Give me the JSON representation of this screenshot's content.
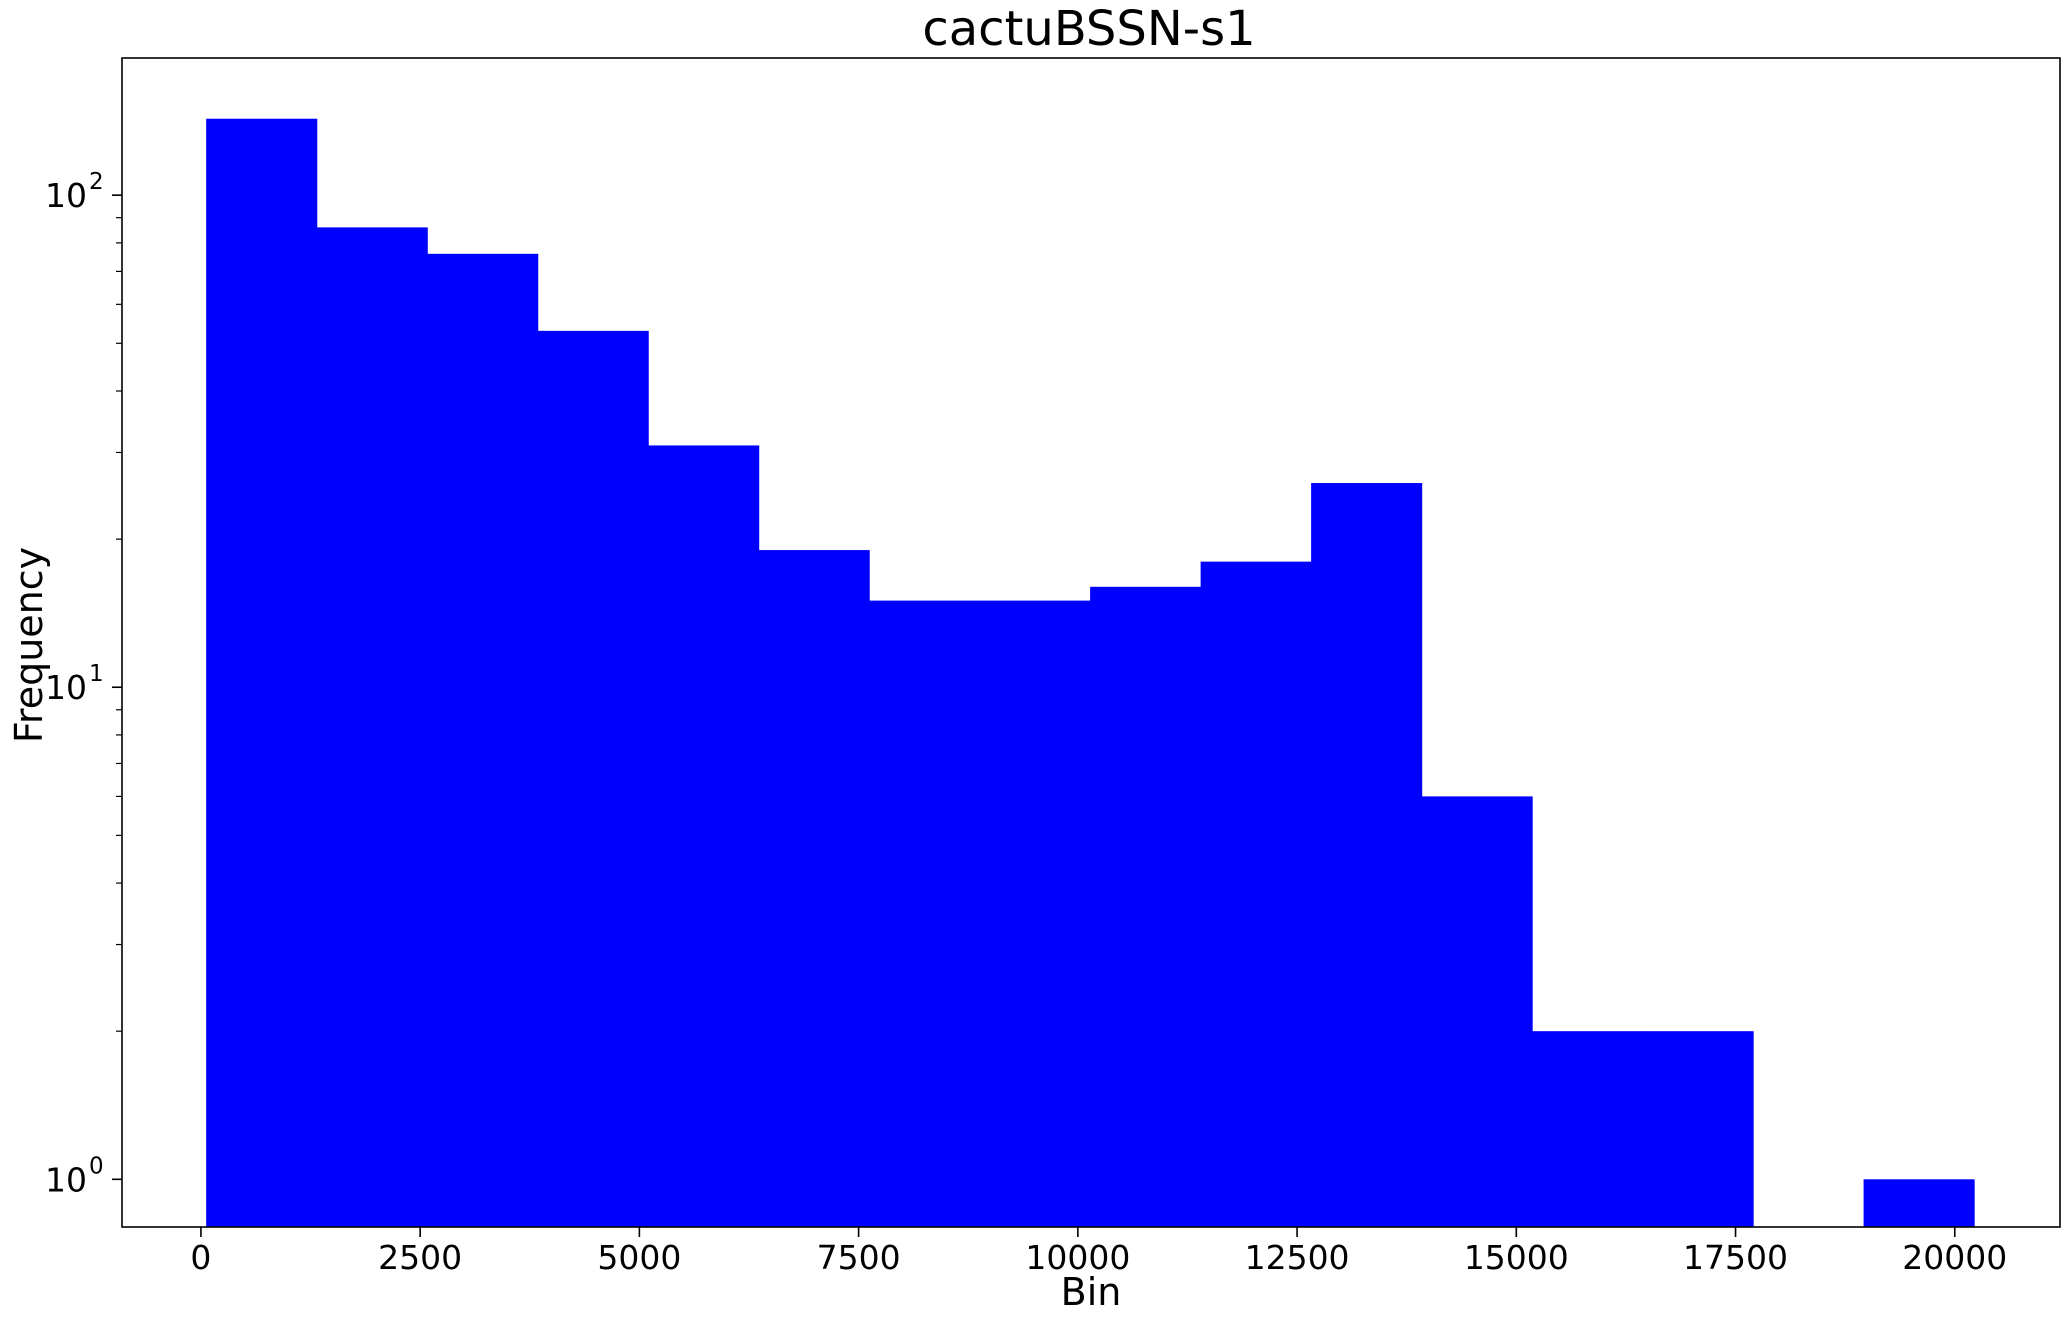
{
  "chart_data": {
    "type": "bar",
    "title": "cactuBSSN-s1",
    "xlabel": "Bin",
    "ylabel": "Frequency",
    "y_scale": "log",
    "ylim": [
      0.8,
      190
    ],
    "xlim": [
      -900,
      21200
    ],
    "bar_color": "#0000ff",
    "grid": false,
    "legend": "none",
    "bins": [
      {
        "x0": 60,
        "x1": 1320,
        "value": 143
      },
      {
        "x0": 1320,
        "x1": 2580,
        "value": 86
      },
      {
        "x0": 2580,
        "x1": 3840,
        "value": 76
      },
      {
        "x0": 3840,
        "x1": 5100,
        "value": 53
      },
      {
        "x0": 5100,
        "x1": 6360,
        "value": 31
      },
      {
        "x0": 6360,
        "x1": 7620,
        "value": 19
      },
      {
        "x0": 7620,
        "x1": 8880,
        "value": 15
      },
      {
        "x0": 8880,
        "x1": 10140,
        "value": 15
      },
      {
        "x0": 10140,
        "x1": 11400,
        "value": 16
      },
      {
        "x0": 11400,
        "x1": 12660,
        "value": 18
      },
      {
        "x0": 12660,
        "x1": 13920,
        "value": 26
      },
      {
        "x0": 13920,
        "x1": 15180,
        "value": 6
      },
      {
        "x0": 15180,
        "x1": 16440,
        "value": 2
      },
      {
        "x0": 16440,
        "x1": 17700,
        "value": 2
      },
      {
        "x0": 17700,
        "x1": 18960,
        "value": 0
      },
      {
        "x0": 18960,
        "x1": 20220,
        "value": 1
      }
    ],
    "x_ticks": [
      {
        "value": 0,
        "label": "0"
      },
      {
        "value": 2500,
        "label": "2500"
      },
      {
        "value": 5000,
        "label": "5000"
      },
      {
        "value": 7500,
        "label": "7500"
      },
      {
        "value": 10000,
        "label": "10000"
      },
      {
        "value": 12500,
        "label": "12500"
      },
      {
        "value": 15000,
        "label": "15000"
      },
      {
        "value": 17500,
        "label": "17500"
      },
      {
        "value": 20000,
        "label": "20000"
      }
    ],
    "y_major_ticks": [
      {
        "value": 1,
        "base": "10",
        "exp": "0"
      },
      {
        "value": 10,
        "base": "10",
        "exp": "1"
      },
      {
        "value": 100,
        "base": "10",
        "exp": "2"
      }
    ],
    "y_minor_ticks": [
      2,
      3,
      4,
      5,
      6,
      7,
      8,
      9,
      20,
      30,
      40,
      50,
      60,
      70,
      80,
      90
    ]
  }
}
